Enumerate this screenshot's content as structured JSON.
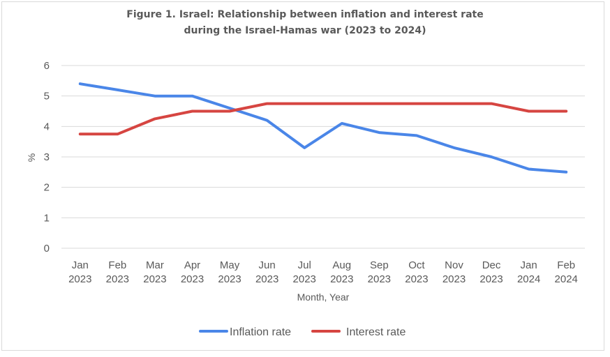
{
  "chart_data": {
    "type": "line",
    "title_line1": "Figure 1. Israel: Relationship between inflation and interest rate",
    "title_line2": "during the Israel-Hamas war (2023 to 2024)",
    "xlabel": "Month, Year",
    "ylabel": "%",
    "ylim": [
      0,
      6
    ],
    "yticks": [
      "0",
      "1",
      "2",
      "3",
      "4",
      "5",
      "6"
    ],
    "grid": true,
    "legend_position": "bottom",
    "categories": [
      {
        "month": "Jan",
        "year": "2023"
      },
      {
        "month": "Feb",
        "year": "2023"
      },
      {
        "month": "Mar",
        "year": "2023"
      },
      {
        "month": "Apr",
        "year": "2023"
      },
      {
        "month": "May",
        "year": "2023"
      },
      {
        "month": "Jun",
        "year": "2023"
      },
      {
        "month": "Jul",
        "year": "2023"
      },
      {
        "month": "Aug",
        "year": "2023"
      },
      {
        "month": "Sep",
        "year": "2023"
      },
      {
        "month": "Oct",
        "year": "2023"
      },
      {
        "month": "Nov",
        "year": "2023"
      },
      {
        "month": "Dec",
        "year": "2023"
      },
      {
        "month": "Jan",
        "year": "2024"
      },
      {
        "month": "Feb",
        "year": "2024"
      }
    ],
    "series": [
      {
        "name": "Inflation rate",
        "color": "#4a86e8",
        "values": [
          5.4,
          5.2,
          5.0,
          5.0,
          4.6,
          4.2,
          3.3,
          4.1,
          3.8,
          3.7,
          3.3,
          3.0,
          2.6,
          2.5
        ]
      },
      {
        "name": "Interest rate",
        "color": "#d64541",
        "values": [
          3.75,
          3.75,
          4.25,
          4.5,
          4.5,
          4.75,
          4.75,
          4.75,
          4.75,
          4.75,
          4.75,
          4.75,
          4.5,
          4.5
        ]
      }
    ]
  }
}
